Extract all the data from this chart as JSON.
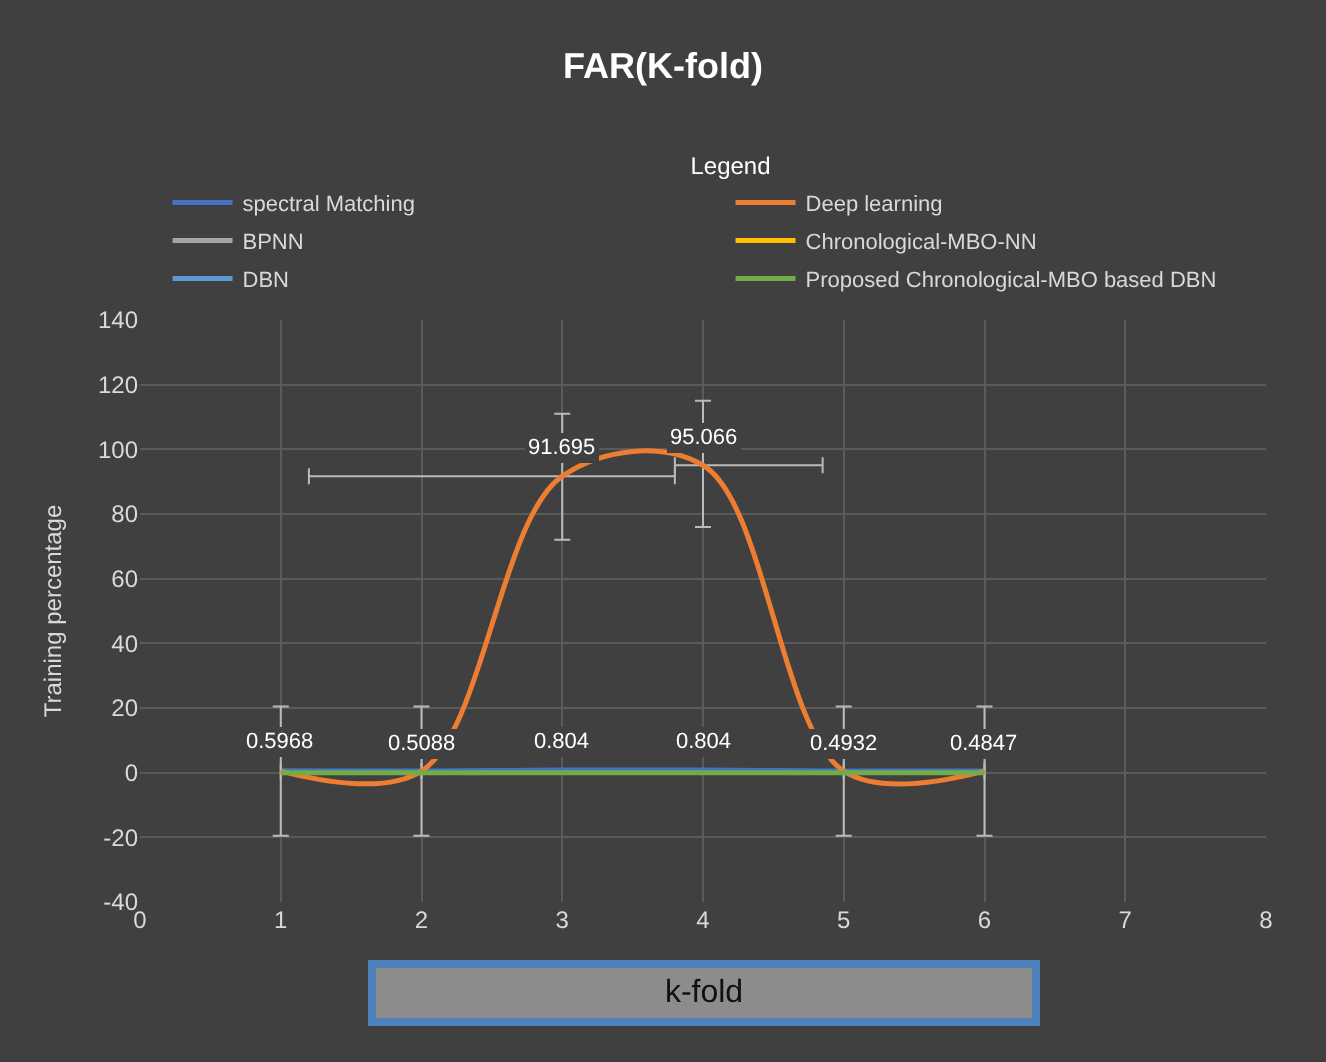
{
  "chart_data": {
    "type": "line",
    "title": "FAR(K-fold)",
    "xlabel": "k-fold",
    "ylabel": "Training percentage",
    "legend_title": "Legend",
    "x": [
      1,
      2,
      3,
      4,
      5,
      6
    ],
    "series": [
      {
        "name": "spectral Matching",
        "color": "#4472c4",
        "values": [
          0.5968,
          0.5088,
          0.804,
          0.804,
          0.4932,
          0.4847
        ],
        "value_labels": [
          "0.5968",
          "0.5088",
          "0.804",
          "0.804",
          "0.4932",
          "0.4847"
        ]
      },
      {
        "name": "Deep learning",
        "color": "#ed7d31",
        "values": [
          0.5,
          0.5,
          91.695,
          95.066,
          0.5,
          0.5
        ],
        "value_labels": [
          null,
          null,
          "91.695",
          "95.066",
          null,
          null
        ],
        "errors": [
          20,
          20,
          [
            72,
            111
          ],
          [
            76,
            115
          ],
          20,
          20
        ],
        "xerrors": [
          null,
          null,
          [
            1.2,
            3.8
          ],
          [
            3.8,
            4.85
          ],
          null,
          null
        ]
      },
      {
        "name": "BPNN",
        "color": "#a5a5a5",
        "values": [
          null,
          null,
          null,
          null,
          null,
          null
        ]
      },
      {
        "name": "Chronological-MBO-NN",
        "color": "#ffc000",
        "values": [
          null,
          null,
          null,
          null,
          null,
          null
        ]
      },
      {
        "name": "DBN",
        "color": "#5b9bd5",
        "values": [
          null,
          null,
          null,
          null,
          null,
          null
        ]
      },
      {
        "name": "Proposed Chronological-MBO based DBN",
        "color": "#70ad47",
        "values": [
          0,
          0,
          0,
          0,
          0,
          0
        ]
      }
    ],
    "xlim": [
      0,
      8
    ],
    "xticks": [
      0,
      1,
      2,
      3,
      4,
      5,
      6,
      7,
      8
    ],
    "ylim": [
      -40,
      140
    ],
    "yticks": [
      -40,
      -20,
      0,
      20,
      40,
      60,
      80,
      100,
      120,
      140
    ],
    "grid": true,
    "legend": "top",
    "line_style": "solid",
    "marker": "none"
  }
}
